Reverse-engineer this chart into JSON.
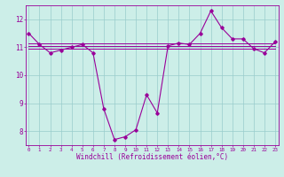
{
  "xlabel": "Windchill (Refroidissement éolien,°C)",
  "bg_color": "#cceee8",
  "line_color": "#990099",
  "grid_color": "#99cccc",
  "hours": [
    0,
    1,
    2,
    3,
    4,
    5,
    6,
    7,
    8,
    9,
    10,
    11,
    12,
    13,
    14,
    15,
    16,
    17,
    18,
    19,
    20,
    21,
    22,
    23
  ],
  "main_values": [
    11.5,
    11.1,
    10.8,
    10.9,
    11.0,
    11.1,
    10.8,
    8.8,
    7.7,
    7.8,
    8.05,
    9.3,
    8.65,
    11.05,
    11.15,
    11.1,
    11.5,
    12.3,
    11.7,
    11.3,
    11.3,
    10.95,
    10.8,
    11.2
  ],
  "avg_line_y": 11.15,
  "flat_line1_y": 11.05,
  "flat_line2_y": 10.95,
  "ylim": [
    7.5,
    12.5
  ],
  "yticks": [
    8,
    9,
    10,
    11,
    12
  ],
  "xlim": [
    -0.3,
    23.3
  ],
  "xtick_fontsize": 4.2,
  "ytick_fontsize": 5.5,
  "xlabel_fontsize": 5.5
}
